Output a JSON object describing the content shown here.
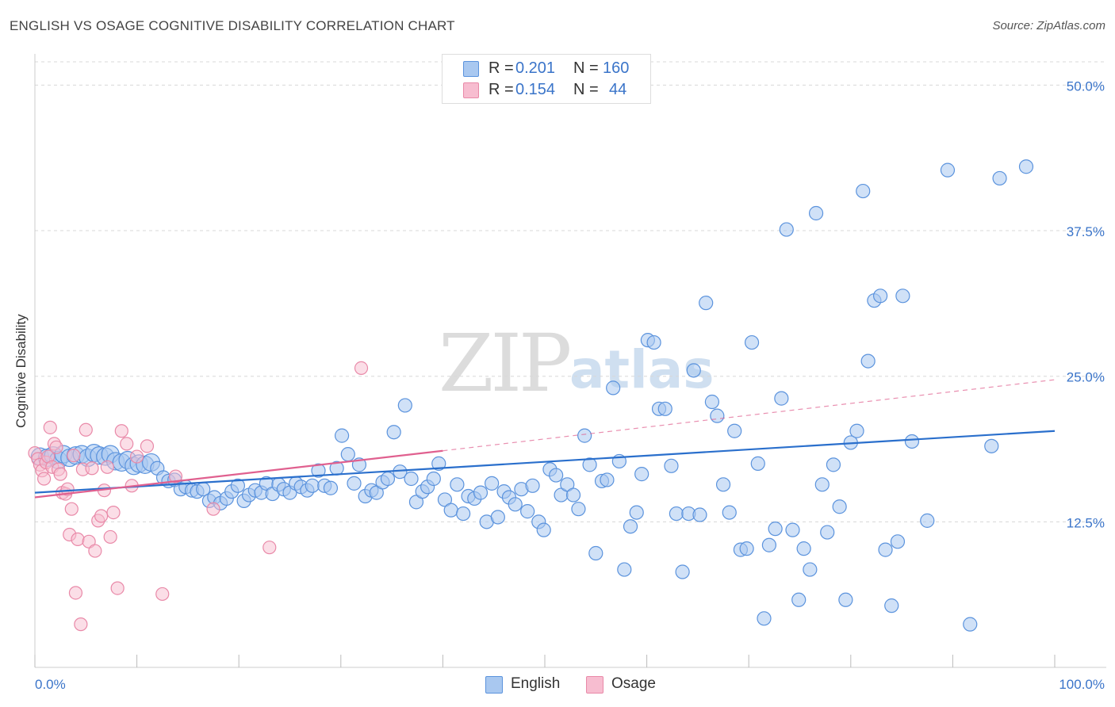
{
  "title": "ENGLISH VS OSAGE COGNITIVE DISABILITY CORRELATION CHART",
  "source": "Source: ZipAtlas.com",
  "colors": {
    "english_fill": "#a9c8f0",
    "english_stroke": "#5b93dd",
    "english_line": "#2a6fcc",
    "osage_fill": "#f7bdd0",
    "osage_stroke": "#e989a8",
    "osage_line": "#e0608f",
    "axis_label": "#3a74c9",
    "grid": "#d8d8d8"
  },
  "legend_top": {
    "rows": [
      {
        "series": "English",
        "r_label": "R =",
        "r_value": "0.201",
        "n_label": "N =",
        "n_value": "160"
      },
      {
        "series": "Osage",
        "r_label": "R =",
        "r_value": "0.154",
        "n_label": "N =",
        "n_value": "44"
      }
    ]
  },
  "legend_bottom": {
    "english": "English",
    "osage": "Osage"
  },
  "watermark": {
    "zip": "ZIP",
    "atlas": "atlas"
  },
  "chart_data": {
    "type": "scatter",
    "title": "ENGLISH VS OSAGE COGNITIVE DISABILITY CORRELATION CHART",
    "xlabel": "",
    "ylabel": "Cognitive Disability",
    "xlim": [
      0,
      100
    ],
    "ylim": [
      0,
      52
    ],
    "x_tick_labels": [
      "0.0%",
      "100.0%"
    ],
    "y_ticks": [
      12.5,
      25.0,
      37.5,
      50.0
    ],
    "y_tick_labels": [
      "12.5%",
      "25.0%",
      "37.5%",
      "50.0%"
    ],
    "grid": true,
    "legend": "top-center",
    "series": [
      {
        "name": "English",
        "r": 0.201,
        "n": 160,
        "trend": {
          "x": [
            0,
            100
          ],
          "y": [
            15.0,
            20.3
          ]
        },
        "points": [
          [
            0.5,
            18.1
          ],
          [
            1.2,
            18.0
          ],
          [
            1.8,
            18.2
          ],
          [
            2.3,
            17.8
          ],
          [
            2.8,
            18.3
          ],
          [
            3.4,
            18.0
          ],
          [
            4.0,
            18.2
          ],
          [
            4.6,
            18.3
          ],
          [
            5.2,
            18.0
          ],
          [
            5.8,
            18.4
          ],
          [
            6.3,
            18.2
          ],
          [
            6.9,
            18.1
          ],
          [
            7.4,
            18.3
          ],
          [
            7.9,
            17.7
          ],
          [
            8.5,
            17.6
          ],
          [
            9.1,
            17.8
          ],
          [
            9.7,
            17.3
          ],
          [
            10.2,
            17.5
          ],
          [
            10.8,
            17.4
          ],
          [
            11.4,
            17.6
          ],
          [
            12.0,
            17.1
          ],
          [
            12.6,
            16.3
          ],
          [
            13.1,
            16.0
          ],
          [
            13.7,
            16.1
          ],
          [
            14.3,
            15.3
          ],
          [
            14.8,
            15.5
          ],
          [
            15.4,
            15.2
          ],
          [
            15.9,
            15.1
          ],
          [
            16.5,
            15.3
          ],
          [
            17.1,
            14.3
          ],
          [
            17.6,
            14.6
          ],
          [
            18.2,
            14.1
          ],
          [
            18.8,
            14.5
          ],
          [
            19.3,
            15.1
          ],
          [
            19.9,
            15.6
          ],
          [
            20.5,
            14.3
          ],
          [
            21.0,
            14.8
          ],
          [
            21.6,
            15.2
          ],
          [
            22.2,
            15.0
          ],
          [
            22.7,
            15.8
          ],
          [
            23.3,
            14.9
          ],
          [
            23.9,
            15.7
          ],
          [
            24.4,
            15.3
          ],
          [
            25.0,
            15.0
          ],
          [
            25.6,
            15.8
          ],
          [
            26.1,
            15.5
          ],
          [
            26.7,
            15.2
          ],
          [
            27.2,
            15.6
          ],
          [
            27.8,
            16.9
          ],
          [
            28.4,
            15.6
          ],
          [
            29.0,
            15.4
          ],
          [
            29.6,
            17.1
          ],
          [
            30.1,
            19.9
          ],
          [
            30.7,
            18.3
          ],
          [
            31.3,
            15.8
          ],
          [
            31.8,
            17.4
          ],
          [
            32.4,
            14.7
          ],
          [
            33.0,
            15.2
          ],
          [
            33.5,
            15.0
          ],
          [
            34.1,
            15.9
          ],
          [
            34.6,
            16.2
          ],
          [
            35.2,
            20.2
          ],
          [
            35.8,
            16.8
          ],
          [
            36.3,
            22.5
          ],
          [
            36.9,
            16.2
          ],
          [
            37.4,
            14.2
          ],
          [
            38.0,
            15.1
          ],
          [
            38.5,
            15.5
          ],
          [
            39.1,
            16.2
          ],
          [
            39.6,
            17.5
          ],
          [
            40.2,
            14.4
          ],
          [
            40.8,
            13.5
          ],
          [
            41.4,
            15.7
          ],
          [
            42.0,
            13.2
          ],
          [
            42.5,
            14.7
          ],
          [
            43.1,
            14.5
          ],
          [
            43.7,
            15.0
          ],
          [
            44.3,
            12.5
          ],
          [
            44.8,
            15.8
          ],
          [
            45.4,
            12.9
          ],
          [
            46.0,
            15.1
          ],
          [
            46.5,
            14.6
          ],
          [
            47.1,
            14.0
          ],
          [
            47.7,
            15.3
          ],
          [
            48.3,
            13.4
          ],
          [
            48.8,
            15.6
          ],
          [
            49.4,
            12.5
          ],
          [
            49.9,
            11.8
          ],
          [
            50.5,
            17.0
          ],
          [
            51.1,
            16.5
          ],
          [
            51.6,
            14.8
          ],
          [
            52.2,
            15.7
          ],
          [
            52.8,
            14.8
          ],
          [
            53.3,
            13.6
          ],
          [
            53.9,
            19.9
          ],
          [
            54.4,
            17.4
          ],
          [
            55.0,
            9.8
          ],
          [
            55.6,
            16.0
          ],
          [
            56.1,
            16.1
          ],
          [
            56.7,
            24.0
          ],
          [
            57.3,
            17.7
          ],
          [
            57.8,
            8.4
          ],
          [
            58.4,
            12.1
          ],
          [
            59.0,
            13.3
          ],
          [
            59.5,
            16.6
          ],
          [
            60.1,
            28.1
          ],
          [
            60.7,
            27.9
          ],
          [
            61.2,
            22.2
          ],
          [
            61.8,
            22.2
          ],
          [
            62.4,
            17.3
          ],
          [
            62.9,
            13.2
          ],
          [
            63.5,
            8.2
          ],
          [
            64.1,
            13.2
          ],
          [
            64.6,
            25.5
          ],
          [
            65.2,
            13.1
          ],
          [
            65.8,
            31.3
          ],
          [
            66.4,
            22.8
          ],
          [
            66.9,
            21.6
          ],
          [
            67.5,
            15.7
          ],
          [
            68.1,
            13.3
          ],
          [
            68.6,
            20.3
          ],
          [
            69.2,
            10.1
          ],
          [
            69.8,
            10.2
          ],
          [
            70.3,
            27.9
          ],
          [
            70.9,
            17.5
          ],
          [
            71.5,
            4.2
          ],
          [
            72.0,
            10.5
          ],
          [
            72.6,
            11.9
          ],
          [
            73.2,
            23.1
          ],
          [
            73.7,
            37.6
          ],
          [
            74.3,
            11.8
          ],
          [
            74.9,
            5.8
          ],
          [
            75.4,
            10.2
          ],
          [
            76.0,
            8.4
          ],
          [
            76.6,
            39.0
          ],
          [
            77.2,
            15.7
          ],
          [
            77.7,
            11.6
          ],
          [
            78.3,
            17.4
          ],
          [
            78.9,
            13.8
          ],
          [
            79.5,
            5.8
          ],
          [
            80.0,
            19.3
          ],
          [
            80.6,
            20.3
          ],
          [
            81.2,
            40.9
          ],
          [
            81.7,
            26.3
          ],
          [
            82.3,
            31.5
          ],
          [
            82.9,
            31.9
          ],
          [
            83.4,
            10.1
          ],
          [
            84.0,
            5.3
          ],
          [
            84.6,
            10.8
          ],
          [
            85.1,
            31.9
          ],
          [
            86.0,
            19.4
          ],
          [
            87.5,
            12.6
          ],
          [
            89.5,
            42.7
          ],
          [
            91.7,
            3.7
          ],
          [
            93.8,
            19.0
          ],
          [
            94.6,
            42.0
          ],
          [
            97.2,
            43.0
          ]
        ]
      },
      {
        "name": "Osage",
        "r": 0.154,
        "n": 44,
        "trend": {
          "x": [
            0,
            40
          ],
          "y": [
            14.6,
            18.6
          ],
          "dashed_to": {
            "x": 100,
            "y": 24.7
          }
        },
        "points": [
          [
            0.0,
            18.4
          ],
          [
            0.3,
            17.9
          ],
          [
            0.5,
            17.4
          ],
          [
            0.7,
            16.9
          ],
          [
            0.9,
            16.2
          ],
          [
            1.1,
            17.6
          ],
          [
            1.3,
            18.1
          ],
          [
            1.5,
            20.6
          ],
          [
            1.7,
            17.2
          ],
          [
            1.9,
            19.2
          ],
          [
            2.1,
            18.9
          ],
          [
            2.3,
            17.0
          ],
          [
            2.5,
            16.6
          ],
          [
            2.7,
            15.0
          ],
          [
            3.0,
            14.9
          ],
          [
            3.2,
            15.3
          ],
          [
            3.4,
            11.4
          ],
          [
            3.6,
            13.6
          ],
          [
            3.8,
            18.2
          ],
          [
            4.0,
            6.4
          ],
          [
            4.2,
            11.0
          ],
          [
            4.5,
            3.7
          ],
          [
            4.7,
            17.0
          ],
          [
            5.0,
            20.4
          ],
          [
            5.3,
            10.8
          ],
          [
            5.6,
            17.1
          ],
          [
            5.9,
            10.0
          ],
          [
            6.2,
            12.6
          ],
          [
            6.5,
            13.0
          ],
          [
            6.8,
            15.2
          ],
          [
            7.1,
            17.2
          ],
          [
            7.4,
            11.2
          ],
          [
            7.7,
            13.3
          ],
          [
            8.1,
            6.8
          ],
          [
            8.5,
            20.3
          ],
          [
            9.0,
            19.2
          ],
          [
            9.5,
            15.6
          ],
          [
            10.0,
            18.1
          ],
          [
            11.0,
            19.0
          ],
          [
            12.5,
            6.3
          ],
          [
            13.8,
            16.4
          ],
          [
            17.5,
            13.6
          ],
          [
            23.0,
            10.3
          ],
          [
            32.0,
            25.7
          ]
        ]
      }
    ]
  }
}
